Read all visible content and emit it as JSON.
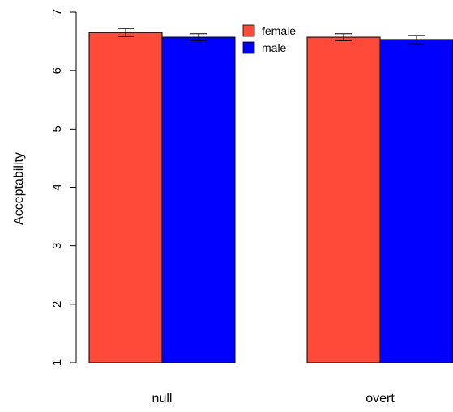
{
  "chart_data": {
    "type": "bar",
    "title": "",
    "xlabel": "",
    "ylabel": "Acceptability",
    "ylim": [
      1,
      7
    ],
    "yticks": [
      "1",
      "2",
      "3",
      "4",
      "5",
      "6",
      "7"
    ],
    "categories": [
      "null",
      "overt"
    ],
    "series": [
      {
        "name": "female",
        "color": "#FF4A3A",
        "values": [
          6.65,
          6.57
        ],
        "err": [
          0.07,
          0.06
        ]
      },
      {
        "name": "male",
        "color": "#0000FF",
        "values": [
          6.57,
          6.53
        ],
        "err": [
          0.06,
          0.07
        ]
      }
    ],
    "legend_position": "top-center",
    "grid": false
  }
}
